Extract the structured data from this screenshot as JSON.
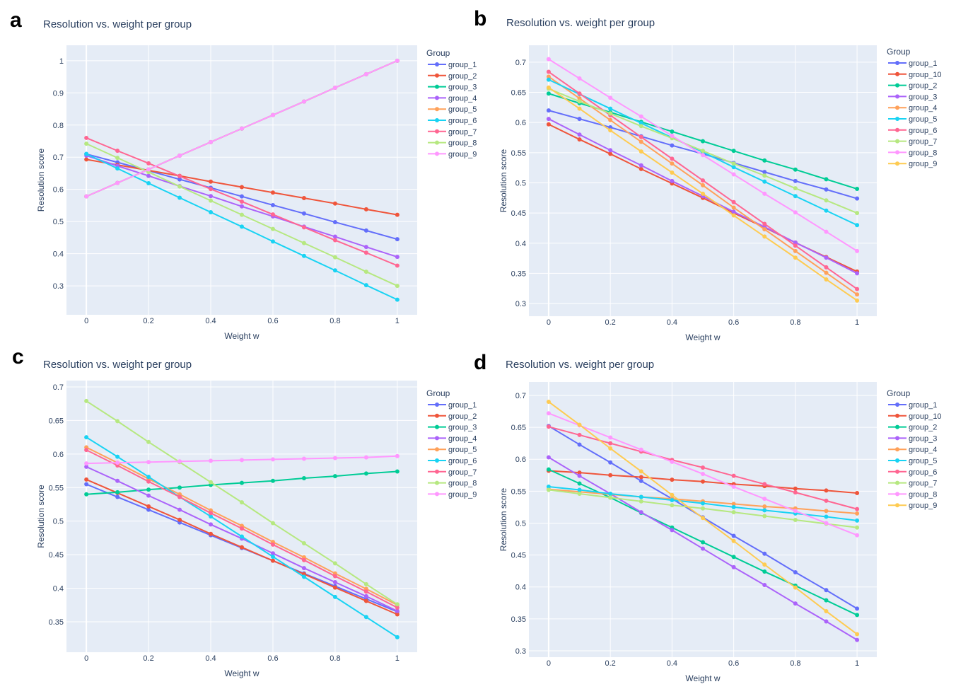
{
  "chart_data": [
    {
      "type": "line",
      "panel_label": "a",
      "title": "Resolution vs. weight per group",
      "x_label": "Weight w",
      "y_label": "Resolution score",
      "legend_title": "Group",
      "grid": true,
      "x": [
        0,
        0.1,
        0.2,
        0.3,
        0.4,
        0.5,
        0.6,
        0.7,
        0.8,
        0.9,
        1
      ],
      "xlim": [
        -0.064,
        1.064
      ],
      "xticks": [
        0,
        0.2,
        0.4,
        0.6,
        0.8,
        1
      ],
      "ylim": [
        0.21,
        1.048
      ],
      "yticks": [
        0.3,
        0.4,
        0.5,
        0.6,
        0.7,
        0.8,
        0.9,
        1
      ],
      "series": [
        {
          "name": "group_1",
          "color": "#636efa",
          "values": [
            0.71,
            0.684,
            0.658,
            0.631,
            0.605,
            0.578,
            0.551,
            0.525,
            0.498,
            0.472,
            0.445
          ]
        },
        {
          "name": "group_2",
          "color": "#EF553B",
          "values": [
            0.693,
            0.676,
            0.659,
            0.642,
            0.624,
            0.607,
            0.59,
            0.573,
            0.556,
            0.538,
            0.521
          ]
        },
        {
          "name": "group_3",
          "color": "#00cc96",
          "values": [
            0.578,
            0.62,
            0.662,
            0.705,
            0.747,
            0.789,
            0.831,
            0.873,
            0.916,
            0.958,
            1.0
          ]
        },
        {
          "name": "group_4",
          "color": "#ab63fa",
          "values": [
            0.705,
            0.673,
            0.642,
            0.61,
            0.579,
            0.547,
            0.516,
            0.484,
            0.453,
            0.421,
            0.39
          ]
        },
        {
          "name": "group_5",
          "color": "#FFA15A",
          "values": [
            0.578,
            0.62,
            0.662,
            0.705,
            0.747,
            0.789,
            0.831,
            0.873,
            0.916,
            0.958,
            1.0
          ]
        },
        {
          "name": "group_6",
          "color": "#19d3f3",
          "values": [
            0.71,
            0.665,
            0.619,
            0.574,
            0.529,
            0.484,
            0.438,
            0.393,
            0.348,
            0.302,
            0.257
          ]
        },
        {
          "name": "group_7",
          "color": "#FF6692",
          "values": [
            0.76,
            0.72,
            0.681,
            0.641,
            0.601,
            0.562,
            0.522,
            0.482,
            0.442,
            0.403,
            0.363
          ]
        },
        {
          "name": "group_8",
          "color": "#B6E880",
          "values": [
            0.742,
            0.698,
            0.654,
            0.609,
            0.565,
            0.521,
            0.477,
            0.433,
            0.389,
            0.344,
            0.3
          ]
        },
        {
          "name": "group_9",
          "color": "#FF97FF",
          "values": [
            0.578,
            0.62,
            0.662,
            0.705,
            0.747,
            0.789,
            0.831,
            0.873,
            0.916,
            0.958,
            1.0
          ]
        }
      ]
    },
    {
      "type": "line",
      "panel_label": "b",
      "title": "Resolution vs. weight per group",
      "x_label": "Weight w",
      "y_label": "Resolution score",
      "legend_title": "Group",
      "grid": true,
      "x": [
        0,
        0.1,
        0.2,
        0.3,
        0.4,
        0.5,
        0.6,
        0.7,
        0.8,
        0.9,
        1
      ],
      "xlim": [
        -0.064,
        1.064
      ],
      "xticks": [
        0,
        0.2,
        0.4,
        0.6,
        0.8,
        1
      ],
      "ylim": [
        0.279,
        0.728
      ],
      "yticks": [
        0.3,
        0.35,
        0.4,
        0.45,
        0.5,
        0.55,
        0.6,
        0.65,
        0.7
      ],
      "series": [
        {
          "name": "group_1",
          "color": "#636efa",
          "values": [
            0.62,
            0.606,
            0.592,
            0.577,
            0.562,
            0.548,
            0.533,
            0.518,
            0.503,
            0.489,
            0.474
          ]
        },
        {
          "name": "group_10",
          "color": "#EF553B",
          "values": [
            0.597,
            0.572,
            0.548,
            0.523,
            0.499,
            0.475,
            0.45,
            0.426,
            0.401,
            0.377,
            0.353
          ]
        },
        {
          "name": "group_2",
          "color": "#00cc96",
          "values": [
            0.648,
            0.632,
            0.617,
            0.601,
            0.585,
            0.569,
            0.553,
            0.537,
            0.522,
            0.506,
            0.49
          ]
        },
        {
          "name": "group_3",
          "color": "#ab63fa",
          "values": [
            0.606,
            0.58,
            0.554,
            0.529,
            0.503,
            0.478,
            0.452,
            0.427,
            0.401,
            0.376,
            0.35
          ]
        },
        {
          "name": "group_4",
          "color": "#FFA15A",
          "values": [
            0.676,
            0.64,
            0.604,
            0.568,
            0.532,
            0.496,
            0.459,
            0.423,
            0.387,
            0.351,
            0.315
          ]
        },
        {
          "name": "group_5",
          "color": "#19d3f3",
          "values": [
            0.671,
            0.647,
            0.623,
            0.599,
            0.575,
            0.551,
            0.526,
            0.502,
            0.478,
            0.454,
            0.43
          ]
        },
        {
          "name": "group_6",
          "color": "#FF6692",
          "values": [
            0.684,
            0.648,
            0.612,
            0.576,
            0.54,
            0.504,
            0.468,
            0.432,
            0.396,
            0.36,
            0.324
          ]
        },
        {
          "name": "group_7",
          "color": "#B6E880",
          "values": [
            0.656,
            0.635,
            0.615,
            0.594,
            0.574,
            0.553,
            0.532,
            0.512,
            0.491,
            0.471,
            0.45
          ]
        },
        {
          "name": "group_8",
          "color": "#FF97FF",
          "values": [
            0.705,
            0.673,
            0.641,
            0.61,
            0.578,
            0.546,
            0.514,
            0.482,
            0.451,
            0.419,
            0.387
          ]
        },
        {
          "name": "group_9",
          "color": "#FECB52",
          "values": [
            0.658,
            0.623,
            0.587,
            0.552,
            0.517,
            0.482,
            0.446,
            0.411,
            0.376,
            0.34,
            0.305
          ]
        }
      ]
    },
    {
      "type": "line",
      "panel_label": "c",
      "title": "Resolution vs. weight per group",
      "x_label": "Weight w",
      "y_label": "Resolution score",
      "legend_title": "Group",
      "grid": true,
      "x": [
        0,
        0.1,
        0.2,
        0.3,
        0.4,
        0.5,
        0.6,
        0.7,
        0.8,
        0.9,
        1
      ],
      "xlim": [
        -0.064,
        1.064
      ],
      "xticks": [
        0,
        0.2,
        0.4,
        0.6,
        0.8,
        1
      ],
      "ylim": [
        0.3046,
        0.7095
      ],
      "yticks": [
        0.35,
        0.4,
        0.45,
        0.5,
        0.55,
        0.6,
        0.65,
        0.7
      ],
      "series": [
        {
          "name": "group_1",
          "color": "#636efa",
          "values": [
            0.555,
            0.536,
            0.517,
            0.498,
            0.479,
            0.46,
            0.441,
            0.422,
            0.403,
            0.384,
            0.365
          ]
        },
        {
          "name": "group_2",
          "color": "#EF553B",
          "values": [
            0.562,
            0.542,
            0.522,
            0.502,
            0.481,
            0.461,
            0.441,
            0.421,
            0.401,
            0.381,
            0.361
          ]
        },
        {
          "name": "group_3",
          "color": "#00cc96",
          "values": [
            0.54,
            0.543,
            0.547,
            0.55,
            0.554,
            0.557,
            0.56,
            0.564,
            0.567,
            0.571,
            0.574
          ]
        },
        {
          "name": "group_4",
          "color": "#ab63fa",
          "values": [
            0.581,
            0.56,
            0.538,
            0.517,
            0.495,
            0.474,
            0.452,
            0.43,
            0.409,
            0.388,
            0.366
          ]
        },
        {
          "name": "group_5",
          "color": "#FFA15A",
          "values": [
            0.61,
            0.587,
            0.563,
            0.54,
            0.516,
            0.493,
            0.469,
            0.446,
            0.422,
            0.399,
            0.375
          ]
        },
        {
          "name": "group_6",
          "color": "#19d3f3",
          "values": [
            0.625,
            0.596,
            0.566,
            0.536,
            0.507,
            0.477,
            0.447,
            0.417,
            0.387,
            0.357,
            0.327
          ]
        },
        {
          "name": "group_7",
          "color": "#FF6692",
          "values": [
            0.606,
            0.583,
            0.559,
            0.536,
            0.512,
            0.489,
            0.465,
            0.442,
            0.418,
            0.395,
            0.371
          ]
        },
        {
          "name": "group_8",
          "color": "#B6E880",
          "values": [
            0.679,
            0.649,
            0.618,
            0.588,
            0.558,
            0.528,
            0.497,
            0.467,
            0.437,
            0.406,
            0.376
          ]
        },
        {
          "name": "group_9",
          "color": "#FF97FF",
          "values": [
            0.586,
            0.587,
            0.588,
            0.589,
            0.59,
            0.591,
            0.592,
            0.593,
            0.594,
            0.595,
            0.597
          ]
        }
      ]
    },
    {
      "type": "line",
      "panel_label": "d",
      "title": "Resolution vs. weight per group",
      "x_label": "Weight w",
      "y_label": "Resolution score",
      "legend_title": "Group",
      "grid": true,
      "x": [
        0,
        0.1,
        0.2,
        0.3,
        0.4,
        0.5,
        0.6,
        0.7,
        0.8,
        0.9,
        1
      ],
      "xlim": [
        -0.064,
        1.064
      ],
      "xticks": [
        0,
        0.2,
        0.4,
        0.6,
        0.8,
        1
      ],
      "ylim": [
        0.29,
        0.721
      ],
      "yticks": [
        0.3,
        0.35,
        0.4,
        0.45,
        0.5,
        0.55,
        0.6,
        0.65,
        0.7
      ],
      "series": [
        {
          "name": "group_1",
          "color": "#636efa",
          "values": [
            0.652,
            0.623,
            0.595,
            0.566,
            0.538,
            0.509,
            0.48,
            0.452,
            0.423,
            0.395,
            0.366
          ]
        },
        {
          "name": "group_10",
          "color": "#EF553B",
          "values": [
            0.582,
            0.579,
            0.575,
            0.572,
            0.568,
            0.565,
            0.561,
            0.558,
            0.554,
            0.551,
            0.547
          ]
        },
        {
          "name": "group_2",
          "color": "#00cc96",
          "values": [
            0.584,
            0.562,
            0.54,
            0.516,
            0.493,
            0.47,
            0.447,
            0.424,
            0.402,
            0.379,
            0.356
          ]
        },
        {
          "name": "group_3",
          "color": "#ab63fa",
          "values": [
            0.603,
            0.574,
            0.546,
            0.517,
            0.489,
            0.46,
            0.431,
            0.403,
            0.374,
            0.346,
            0.317
          ]
        },
        {
          "name": "group_4",
          "color": "#FFA15A",
          "values": [
            0.553,
            0.549,
            0.545,
            0.541,
            0.538,
            0.534,
            0.53,
            0.526,
            0.523,
            0.519,
            0.515
          ]
        },
        {
          "name": "group_5",
          "color": "#19d3f3",
          "values": [
            0.557,
            0.552,
            0.546,
            0.541,
            0.536,
            0.531,
            0.525,
            0.52,
            0.515,
            0.51,
            0.504
          ]
        },
        {
          "name": "group_6",
          "color": "#FF6692",
          "values": [
            0.651,
            0.638,
            0.625,
            0.612,
            0.599,
            0.587,
            0.574,
            0.561,
            0.548,
            0.535,
            0.522
          ]
        },
        {
          "name": "group_7",
          "color": "#B6E880",
          "values": [
            0.552,
            0.546,
            0.54,
            0.534,
            0.528,
            0.523,
            0.517,
            0.511,
            0.505,
            0.499,
            0.493
          ]
        },
        {
          "name": "group_8",
          "color": "#FF97FF",
          "values": [
            0.672,
            0.653,
            0.634,
            0.615,
            0.596,
            0.577,
            0.557,
            0.538,
            0.519,
            0.5,
            0.481
          ]
        },
        {
          "name": "group_9",
          "color": "#FECB52",
          "values": [
            0.69,
            0.654,
            0.617,
            0.581,
            0.544,
            0.508,
            0.472,
            0.435,
            0.399,
            0.362,
            0.326
          ]
        }
      ]
    }
  ]
}
